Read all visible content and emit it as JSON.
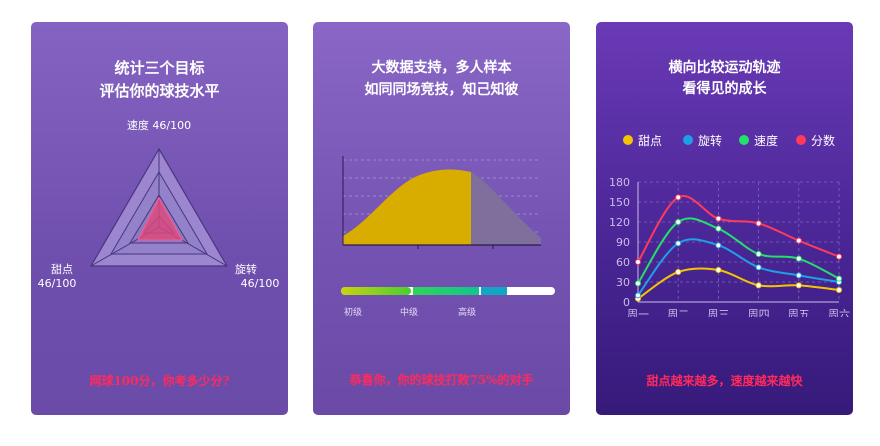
{
  "card1": {
    "title_line1": "统计三个目标",
    "title_line2": "评估你的球技水平",
    "radar": {
      "type": "radar",
      "axes": [
        {
          "label": "速度",
          "value_text": "46/100",
          "value": 46,
          "max": 100
        },
        {
          "label": "旋转",
          "value_text": "46/100",
          "value": 46,
          "max": 100
        },
        {
          "label": "甜点",
          "value_text": "46/100",
          "value": 46,
          "max": 100
        }
      ]
    },
    "footer": "网球100分，你考多少分?"
  },
  "card2": {
    "title_line1": "大数据支持，多人样本",
    "title_line2": "如同同场竞技，知己知彼",
    "levels": [
      "初级",
      "中级",
      "高级"
    ],
    "footer": "恭喜你，你的球技打败75%的对手",
    "percentile": 75
  },
  "card3": {
    "title_line1": "横向比较运动轨迹",
    "title_line2": "看得见的成长",
    "footer": "甜点越来越多，速度越来越快"
  },
  "chart_data": {
    "type": "line",
    "categories": [
      "周一",
      "周二",
      "周三",
      "周四",
      "周五",
      "周六"
    ],
    "ylim": [
      0,
      180
    ],
    "yticks": [
      0,
      30,
      60,
      90,
      120,
      150,
      180
    ],
    "grid": true,
    "legend_position": "top",
    "series": [
      {
        "name": "甜点",
        "color": "#f5c400",
        "values": [
          5,
          45,
          48,
          25,
          25,
          18
        ]
      },
      {
        "name": "旋转",
        "color": "#1ea0e6",
        "values": [
          10,
          88,
          85,
          52,
          40,
          30
        ]
      },
      {
        "name": "速度",
        "color": "#22e06a",
        "values": [
          28,
          120,
          110,
          72,
          65,
          35
        ]
      },
      {
        "name": "分数",
        "color": "#ff3a5c",
        "values": [
          60,
          157,
          125,
          118,
          92,
          68
        ]
      }
    ]
  }
}
